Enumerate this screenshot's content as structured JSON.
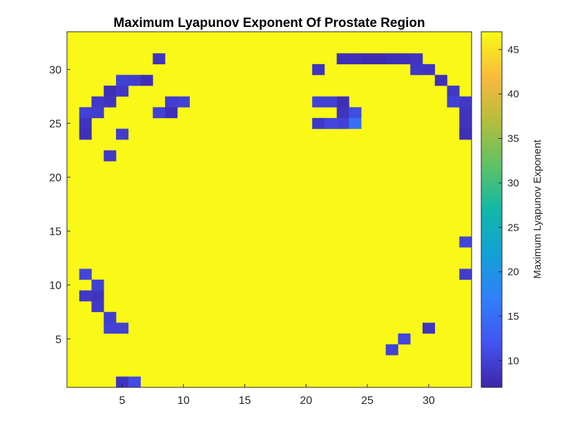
{
  "chart_data": {
    "type": "heatmap",
    "title": "Maximum Lyapunov Exponent Of Prostate Region",
    "xlabel": "",
    "ylabel": "",
    "colorbar_label": "Maximum Lyapunov Exponent",
    "colormap": "parula",
    "rows": 33,
    "cols": 33,
    "x_range": [
      1,
      33
    ],
    "y_range": [
      1,
      33
    ],
    "y_direction": "up",
    "x_ticks": [
      5,
      10,
      15,
      20,
      25,
      30
    ],
    "y_ticks": [
      5,
      10,
      15,
      20,
      25,
      30
    ],
    "clim": [
      7,
      47
    ],
    "colorbar_ticks": [
      10,
      15,
      20,
      25,
      30,
      35,
      40,
      45
    ],
    "background_value": 46.8,
    "low_cells": [
      {
        "x": 8,
        "y": 31,
        "v": 8.5
      },
      {
        "x": 21,
        "y": 30,
        "v": 8.5
      },
      {
        "x": 23,
        "y": 31,
        "v": 8.0
      },
      {
        "x": 24,
        "y": 31,
        "v": 8.0
      },
      {
        "x": 25,
        "y": 31,
        "v": 7.5
      },
      {
        "x": 26,
        "y": 31,
        "v": 7.5
      },
      {
        "x": 27,
        "y": 31,
        "v": 8.0
      },
      {
        "x": 28,
        "y": 31,
        "v": 8.0
      },
      {
        "x": 29,
        "y": 31,
        "v": 8.5
      },
      {
        "x": 29,
        "y": 30,
        "v": 9.0
      },
      {
        "x": 30,
        "y": 30,
        "v": 8.5
      },
      {
        "x": 31,
        "y": 29,
        "v": 8.0
      },
      {
        "x": 32,
        "y": 28,
        "v": 9.0
      },
      {
        "x": 32,
        "y": 27,
        "v": 10.0
      },
      {
        "x": 33,
        "y": 27,
        "v": 9.0
      },
      {
        "x": 33,
        "y": 26,
        "v": 8.5
      },
      {
        "x": 33,
        "y": 25,
        "v": 8.5
      },
      {
        "x": 33,
        "y": 24,
        "v": 8.0
      },
      {
        "x": 5,
        "y": 29,
        "v": 10.0
      },
      {
        "x": 6,
        "y": 29,
        "v": 9.5
      },
      {
        "x": 7,
        "y": 29,
        "v": 8.0
      },
      {
        "x": 4,
        "y": 28,
        "v": 8.0
      },
      {
        "x": 5,
        "y": 28,
        "v": 9.0
      },
      {
        "x": 3,
        "y": 27,
        "v": 9.0
      },
      {
        "x": 4,
        "y": 27,
        "v": 8.5
      },
      {
        "x": 2,
        "y": 26,
        "v": 10.0
      },
      {
        "x": 3,
        "y": 26,
        "v": 9.5
      },
      {
        "x": 2,
        "y": 25,
        "v": 8.5
      },
      {
        "x": 2,
        "y": 24,
        "v": 8.0
      },
      {
        "x": 9,
        "y": 27,
        "v": 9.5
      },
      {
        "x": 10,
        "y": 27,
        "v": 10.0
      },
      {
        "x": 8,
        "y": 26,
        "v": 10.0
      },
      {
        "x": 9,
        "y": 26,
        "v": 8.0
      },
      {
        "x": 21,
        "y": 27,
        "v": 10.0
      },
      {
        "x": 22,
        "y": 27,
        "v": 10.0
      },
      {
        "x": 23,
        "y": 27,
        "v": 8.0
      },
      {
        "x": 23,
        "y": 26,
        "v": 8.5
      },
      {
        "x": 24,
        "y": 26,
        "v": 11.0
      },
      {
        "x": 21,
        "y": 25,
        "v": 9.0
      },
      {
        "x": 22,
        "y": 25,
        "v": 10.5
      },
      {
        "x": 23,
        "y": 25,
        "v": 10.0
      },
      {
        "x": 24,
        "y": 25,
        "v": 15.0
      },
      {
        "x": 5,
        "y": 24,
        "v": 9.5
      },
      {
        "x": 4,
        "y": 22,
        "v": 9.0
      },
      {
        "x": 33,
        "y": 14,
        "v": 10.5
      },
      {
        "x": 33,
        "y": 11,
        "v": 9.5
      },
      {
        "x": 2,
        "y": 11,
        "v": 10.5
      },
      {
        "x": 3,
        "y": 10,
        "v": 10.0
      },
      {
        "x": 2,
        "y": 9,
        "v": 9.0
      },
      {
        "x": 3,
        "y": 9,
        "v": 8.5
      },
      {
        "x": 3,
        "y": 8,
        "v": 9.0
      },
      {
        "x": 4,
        "y": 7,
        "v": 9.5
      },
      {
        "x": 4,
        "y": 6,
        "v": 10.0
      },
      {
        "x": 5,
        "y": 6,
        "v": 10.0
      },
      {
        "x": 30,
        "y": 6,
        "v": 8.5
      },
      {
        "x": 28,
        "y": 5,
        "v": 10.5
      },
      {
        "x": 27,
        "y": 4,
        "v": 10.0
      },
      {
        "x": 5,
        "y": 1,
        "v": 8.5
      },
      {
        "x": 6,
        "y": 1,
        "v": 11.0
      }
    ]
  }
}
